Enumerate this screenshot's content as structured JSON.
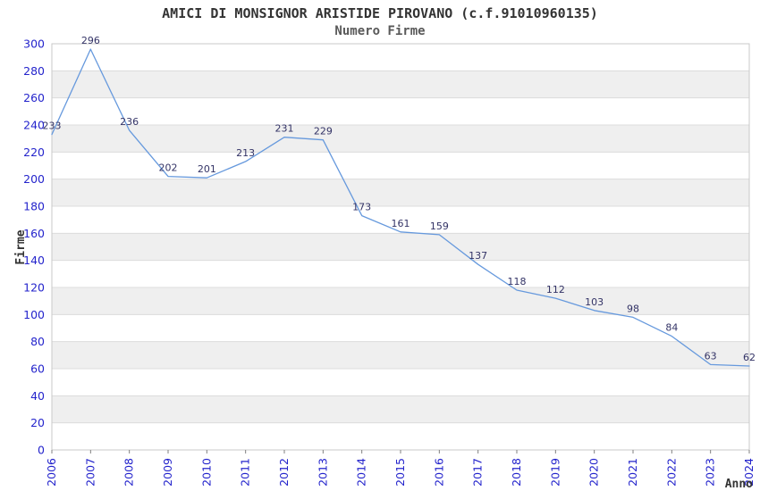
{
  "chart": {
    "title": "AMICI DI MONSIGNOR ARISTIDE PIROVANO (c.f.91010960135)",
    "subtitle": "Numero Firme"
  },
  "chart_data": {
    "type": "line",
    "title": "AMICI DI MONSIGNOR ARISTIDE PIROVANO (c.f.91010960135)",
    "subtitle": "Numero Firme",
    "xlabel": "Anno",
    "ylabel": "Firme",
    "x": [
      "2006",
      "2007",
      "2008",
      "2009",
      "2010",
      "2011",
      "2012",
      "2013",
      "2014",
      "2015",
      "2016",
      "2017",
      "2018",
      "2019",
      "2020",
      "2021",
      "2022",
      "2023",
      "2024"
    ],
    "series": [
      {
        "name": "Numero Firme",
        "values": [
          233,
          296,
          236,
          202,
          201,
          213,
          231,
          229,
          173,
          161,
          159,
          137,
          118,
          112,
          103,
          98,
          84,
          63,
          62
        ]
      }
    ],
    "ylim": [
      0,
      300
    ],
    "ytick_step": 20,
    "grid": true,
    "legend_position": "none",
    "data_labels_visible": true,
    "colors": {
      "line": "#6699DD",
      "data_label": "#333366",
      "tick_label": "#2424CC",
      "band": "#EFEFEF",
      "gridline": "#DCDCDC",
      "plot_border": "#C9C9C9",
      "tick_mark": "#808080",
      "axis_title": "#333333",
      "title": "#333333",
      "subtitle": "#595959",
      "background": "#FFFFFF"
    }
  }
}
